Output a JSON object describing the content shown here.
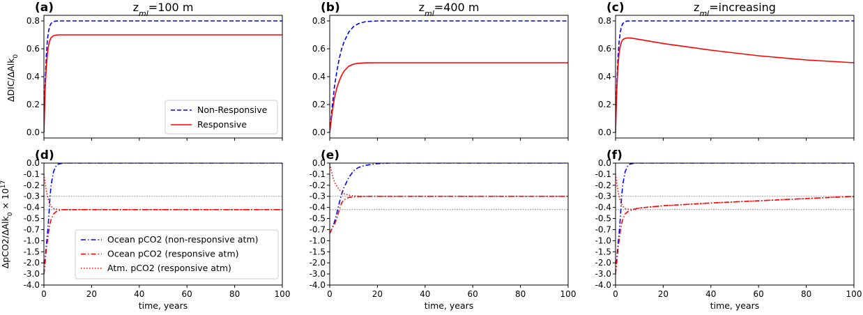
{
  "figure": {
    "ylabel_top": "ΔDIC/ΔAlk",
    "ylabel_top_sub": "0",
    "ylabel_bottom": "ΔpCO2/ΔAlk",
    "ylabel_bottom_sub": "0",
    "ylabel_bottom_suffix": " × 10",
    "ylabel_bottom_sup": "17",
    "xlabel": "time,  years"
  },
  "colors": {
    "non_responsive": "#0000ff",
    "responsive": "#ff0000",
    "reference_lines": "#808080"
  },
  "panels": [
    {
      "letter": "(a)",
      "title_prefix": "z",
      "title_sub": "ml",
      "title_suffix": "=100 m"
    },
    {
      "letter": "(b)",
      "title_prefix": "z",
      "title_sub": "ml",
      "title_suffix": "=400 m"
    },
    {
      "letter": "(c)",
      "title_prefix": "z",
      "title_sub": "ml",
      "title_suffix": "=increasing"
    },
    {
      "letter": "(d)"
    },
    {
      "letter": "(e)"
    },
    {
      "letter": "(f)"
    }
  ],
  "legend_top": [
    {
      "label": "Non-Responsive",
      "style": "dashed",
      "color": "#0000ff"
    },
    {
      "label": "Responsive",
      "style": "solid",
      "color": "#ff0000"
    }
  ],
  "legend_bottom": [
    {
      "label": "Ocean pCO2 (non-responsive atm)",
      "style": "dashdot",
      "color": "#0000ff"
    },
    {
      "label": "Ocean pCO2 (responsive atm)",
      "style": "dashdot",
      "color": "#ff0000"
    },
    {
      "label": "Atm. pCO2 (responsive atm)",
      "style": "dotted",
      "color": "#ff0000"
    }
  ],
  "chart_data": [
    {
      "type": "line",
      "panel": "(a)",
      "xlim": [
        0,
        100
      ],
      "ylim": [
        -0.04,
        0.84
      ],
      "xticks": [
        0,
        20,
        40,
        60,
        80,
        100
      ],
      "yticks": [
        0.0,
        0.2,
        0.4,
        0.6,
        0.8
      ],
      "xtick_labels": [
        "0",
        "20",
        "40",
        "60",
        "80",
        "100"
      ],
      "ytick_labels": [
        "0.0",
        "0.2",
        "0.4",
        "0.6",
        "0.8"
      ],
      "series": [
        {
          "name": "Non-Responsive",
          "style": "dashed",
          "color": "#0000ff",
          "x": [
            0,
            0.5,
            1,
            1.5,
            2,
            2.5,
            3,
            4,
            5,
            6,
            8,
            10,
            20,
            40,
            60,
            80,
            100
          ],
          "y": [
            0,
            0.35,
            0.55,
            0.67,
            0.73,
            0.765,
            0.782,
            0.795,
            0.799,
            0.8,
            0.8,
            0.8,
            0.8,
            0.8,
            0.8,
            0.8,
            0.8
          ]
        },
        {
          "name": "Responsive",
          "style": "solid",
          "color": "#ff0000",
          "x": [
            0,
            0.5,
            1,
            1.5,
            2,
            2.5,
            3,
            4,
            5,
            6,
            8,
            10,
            20,
            40,
            60,
            80,
            100
          ],
          "y": [
            0,
            0.3,
            0.47,
            0.57,
            0.63,
            0.66,
            0.68,
            0.693,
            0.698,
            0.7,
            0.7,
            0.7,
            0.7,
            0.7,
            0.7,
            0.7,
            0.7
          ]
        }
      ]
    },
    {
      "type": "line",
      "panel": "(b)",
      "xlim": [
        0,
        100
      ],
      "ylim": [
        -0.04,
        0.84
      ],
      "xticks": [
        0,
        20,
        40,
        60,
        80,
        100
      ],
      "yticks": [
        0.0,
        0.2,
        0.4,
        0.6,
        0.8
      ],
      "xtick_labels": [
        "0",
        "20",
        "40",
        "60",
        "80",
        "100"
      ],
      "ytick_labels": [
        "0.0",
        "0.2",
        "0.4",
        "0.6",
        "0.8"
      ],
      "series": [
        {
          "name": "Non-Responsive",
          "style": "dashed",
          "color": "#0000ff",
          "x": [
            0,
            1,
            2,
            3,
            4,
            5,
            6,
            8,
            10,
            12,
            15,
            20,
            25,
            30,
            40,
            60,
            80,
            100
          ],
          "y": [
            0,
            0.18,
            0.33,
            0.44,
            0.53,
            0.6,
            0.65,
            0.72,
            0.76,
            0.78,
            0.795,
            0.8,
            0.8,
            0.8,
            0.8,
            0.8,
            0.8,
            0.8
          ]
        },
        {
          "name": "Responsive",
          "style": "solid",
          "color": "#ff0000",
          "x": [
            0,
            1,
            2,
            3,
            4,
            5,
            6,
            8,
            10,
            12,
            15,
            20,
            25,
            30,
            40,
            60,
            80,
            100
          ],
          "y": [
            0,
            0.14,
            0.25,
            0.32,
            0.37,
            0.41,
            0.44,
            0.475,
            0.49,
            0.496,
            0.499,
            0.5,
            0.5,
            0.5,
            0.5,
            0.5,
            0.5,
            0.5
          ]
        }
      ]
    },
    {
      "type": "line",
      "panel": "(c)",
      "xlim": [
        0,
        100
      ],
      "ylim": [
        -0.04,
        0.84
      ],
      "xticks": [
        0,
        20,
        40,
        60,
        80,
        100
      ],
      "yticks": [
        0.0,
        0.2,
        0.4,
        0.6,
        0.8
      ],
      "xtick_labels": [
        "0",
        "20",
        "40",
        "60",
        "80",
        "100"
      ],
      "ytick_labels": [
        "0.0",
        "0.2",
        "0.4",
        "0.6",
        "0.8"
      ],
      "series": [
        {
          "name": "Non-Responsive",
          "style": "dashed",
          "color": "#0000ff",
          "x": [
            0,
            0.5,
            1,
            1.5,
            2,
            2.5,
            3,
            4,
            5,
            6,
            8,
            10,
            20,
            40,
            60,
            80,
            100
          ],
          "y": [
            0,
            0.33,
            0.53,
            0.65,
            0.72,
            0.76,
            0.78,
            0.795,
            0.799,
            0.8,
            0.8,
            0.8,
            0.8,
            0.8,
            0.8,
            0.8,
            0.8
          ]
        },
        {
          "name": "Responsive",
          "style": "solid",
          "color": "#ff0000",
          "x": [
            0,
            0.5,
            1,
            1.5,
            2,
            2.5,
            3,
            4,
            5,
            6,
            7,
            8,
            10,
            20,
            40,
            60,
            80,
            100
          ],
          "y": [
            0,
            0.3,
            0.47,
            0.57,
            0.62,
            0.65,
            0.665,
            0.675,
            0.678,
            0.678,
            0.676,
            0.673,
            0.667,
            0.638,
            0.59,
            0.55,
            0.52,
            0.5
          ]
        }
      ]
    },
    {
      "type": "line",
      "panel": "(d)",
      "yscale": "symlog",
      "xlim": [
        0,
        100
      ],
      "ylim": [
        -4.0,
        0.0
      ],
      "xticks": [
        0,
        20,
        40,
        60,
        80,
        100
      ],
      "yticks": [
        0.0,
        -0.1,
        -0.2,
        -0.3,
        -0.4,
        -0.5,
        -0.7,
        -1.0,
        -1.5,
        -2.0,
        -3.0,
        -4.0
      ],
      "xtick_labels": [
        "0",
        "20",
        "40",
        "60",
        "80",
        "100"
      ],
      "ytick_labels": [
        "0.0",
        "-0.1",
        "-0.2",
        "-0.3",
        "-0.4",
        "-0.5",
        "-0.7",
        "-1.0",
        "-1.5",
        "-2.0",
        "-3.0",
        "-4.0"
      ],
      "reference_lines_y": [
        -0.3,
        -0.42
      ],
      "series": [
        {
          "name": "Ocean pCO2 (non-responsive atm)",
          "style": "dashdot",
          "color": "#0000ff",
          "x": [
            0,
            0.5,
            1,
            1.5,
            2,
            2.5,
            3,
            4,
            5,
            6,
            8,
            10,
            20,
            40,
            60,
            80,
            100
          ],
          "y": [
            -3.0,
            -1.8,
            -1.2,
            -0.8,
            -0.5,
            -0.32,
            -0.2,
            -0.08,
            -0.03,
            -0.01,
            0,
            0,
            0,
            0,
            0,
            0,
            0
          ]
        },
        {
          "name": "Ocean pCO2 (responsive atm)",
          "style": "dashdot",
          "color": "#ff0000",
          "x": [
            0,
            0.5,
            1,
            1.5,
            2,
            2.5,
            3,
            4,
            5,
            6,
            8,
            10,
            20,
            40,
            60,
            80,
            100
          ],
          "y": [
            -3.0,
            -2.0,
            -1.4,
            -1.0,
            -0.75,
            -0.6,
            -0.52,
            -0.46,
            -0.44,
            -0.43,
            -0.42,
            -0.42,
            -0.42,
            -0.42,
            -0.42,
            -0.42,
            -0.42
          ]
        },
        {
          "name": "Atm. pCO2 (responsive atm)",
          "style": "dotted",
          "color": "#ff0000",
          "x": [
            0,
            0.5,
            1,
            1.5,
            2,
            2.5,
            3,
            4,
            5,
            6,
            8,
            10,
            20,
            40,
            60,
            80,
            100
          ],
          "y": [
            -0.1,
            -0.18,
            -0.25,
            -0.3,
            -0.34,
            -0.37,
            -0.39,
            -0.41,
            -0.415,
            -0.418,
            -0.42,
            -0.42,
            -0.42,
            -0.42,
            -0.42,
            -0.42,
            -0.42
          ]
        }
      ]
    },
    {
      "type": "line",
      "panel": "(e)",
      "yscale": "symlog",
      "xlim": [
        0,
        100
      ],
      "ylim": [
        -4.0,
        0.0
      ],
      "xticks": [
        0,
        20,
        40,
        60,
        80,
        100
      ],
      "yticks": [
        0.0,
        -0.1,
        -0.2,
        -0.3,
        -0.4,
        -0.5,
        -0.7,
        -1.0,
        -1.5,
        -2.0,
        -3.0,
        -4.0
      ],
      "xtick_labels": [
        "0",
        "20",
        "40",
        "60",
        "80",
        "100"
      ],
      "ytick_labels": [
        "0.0",
        "-0.1",
        "-0.2",
        "-0.3",
        "-0.4",
        "-0.5",
        "-0.7",
        "-1.0",
        "-1.5",
        "-2.0",
        "-3.0",
        "-4.0"
      ],
      "reference_lines_y": [
        -0.3,
        -0.42
      ],
      "series": [
        {
          "name": "Ocean pCO2 (non-responsive atm)",
          "style": "dashdot",
          "color": "#0000ff",
          "x": [
            0,
            1,
            2,
            3,
            4,
            5,
            6,
            8,
            10,
            12,
            15,
            20,
            25,
            30,
            40,
            60,
            80,
            100
          ],
          "y": [
            -0.8,
            -0.68,
            -0.56,
            -0.45,
            -0.36,
            -0.28,
            -0.22,
            -0.13,
            -0.07,
            -0.04,
            -0.02,
            -0.005,
            0,
            0,
            0,
            0,
            0,
            0
          ]
        },
        {
          "name": "Ocean pCO2 (responsive atm)",
          "style": "dashdot",
          "color": "#ff0000",
          "x": [
            0,
            1,
            2,
            3,
            4,
            5,
            6,
            8,
            10,
            12,
            15,
            20,
            25,
            30,
            40,
            60,
            80,
            100
          ],
          "y": [
            -0.8,
            -0.68,
            -0.6,
            -0.5,
            -0.42,
            -0.36,
            -0.33,
            -0.31,
            -0.305,
            -0.302,
            -0.3,
            -0.3,
            -0.3,
            -0.3,
            -0.3,
            -0.3,
            -0.3,
            -0.3
          ]
        },
        {
          "name": "Atm. pCO2 (responsive atm)",
          "style": "dotted",
          "color": "#ff0000",
          "x": [
            0,
            0.5,
            1,
            1.5,
            2,
            3,
            4,
            5,
            6,
            8,
            10,
            15,
            20,
            30,
            40,
            60,
            80,
            100
          ],
          "y": [
            -0.01,
            -0.05,
            -0.1,
            -0.14,
            -0.17,
            -0.21,
            -0.24,
            -0.26,
            -0.275,
            -0.29,
            -0.296,
            -0.3,
            -0.3,
            -0.3,
            -0.3,
            -0.3,
            -0.3,
            -0.3
          ]
        }
      ]
    },
    {
      "type": "line",
      "panel": "(f)",
      "yscale": "symlog",
      "xlim": [
        0,
        100
      ],
      "ylim": [
        -4.0,
        0.0
      ],
      "xticks": [
        0,
        20,
        40,
        60,
        80,
        100
      ],
      "yticks": [
        0.0,
        -0.1,
        -0.2,
        -0.3,
        -0.4,
        -0.5,
        -0.7,
        -1.0,
        -1.5,
        -2.0,
        -3.0,
        -4.0
      ],
      "xtick_labels": [
        "0",
        "20",
        "40",
        "60",
        "80",
        "100"
      ],
      "ytick_labels": [
        "0.0",
        "-0.1",
        "-0.2",
        "-0.3",
        "-0.4",
        "-0.5",
        "-0.7",
        "-1.0",
        "-1.5",
        "-2.0",
        "-3.0",
        "-4.0"
      ],
      "reference_lines_y": [
        -0.3,
        -0.42
      ],
      "series": [
        {
          "name": "Ocean pCO2 (non-responsive atm)",
          "style": "dashdot",
          "color": "#0000ff",
          "x": [
            0,
            0.5,
            1,
            1.5,
            2,
            2.5,
            3,
            4,
            5,
            6,
            8,
            10,
            20,
            40,
            60,
            80,
            100
          ],
          "y": [
            -3.0,
            -1.8,
            -1.2,
            -0.8,
            -0.5,
            -0.32,
            -0.2,
            -0.08,
            -0.03,
            -0.01,
            0,
            0,
            0,
            0,
            0,
            0,
            0
          ]
        },
        {
          "name": "Ocean pCO2 (responsive atm)",
          "style": "dashdot",
          "color": "#ff0000",
          "x": [
            0,
            0.5,
            1,
            1.5,
            2,
            2.5,
            3,
            4,
            5,
            6,
            8,
            10,
            20,
            40,
            60,
            80,
            100
          ],
          "y": [
            -3.0,
            -2.0,
            -1.4,
            -1.0,
            -0.75,
            -0.6,
            -0.52,
            -0.46,
            -0.44,
            -0.43,
            -0.415,
            -0.405,
            -0.385,
            -0.36,
            -0.34,
            -0.32,
            -0.3
          ]
        },
        {
          "name": "Atm. pCO2 (responsive atm)",
          "style": "dotted",
          "color": "#ff0000",
          "x": [
            0,
            0.5,
            1,
            1.5,
            2,
            2.5,
            3,
            4,
            5,
            6,
            8,
            10,
            20,
            40,
            60,
            80,
            100
          ],
          "y": [
            -0.1,
            -0.18,
            -0.25,
            -0.3,
            -0.34,
            -0.37,
            -0.39,
            -0.41,
            -0.415,
            -0.418,
            -0.415,
            -0.405,
            -0.385,
            -0.36,
            -0.34,
            -0.32,
            -0.3
          ]
        }
      ]
    }
  ]
}
